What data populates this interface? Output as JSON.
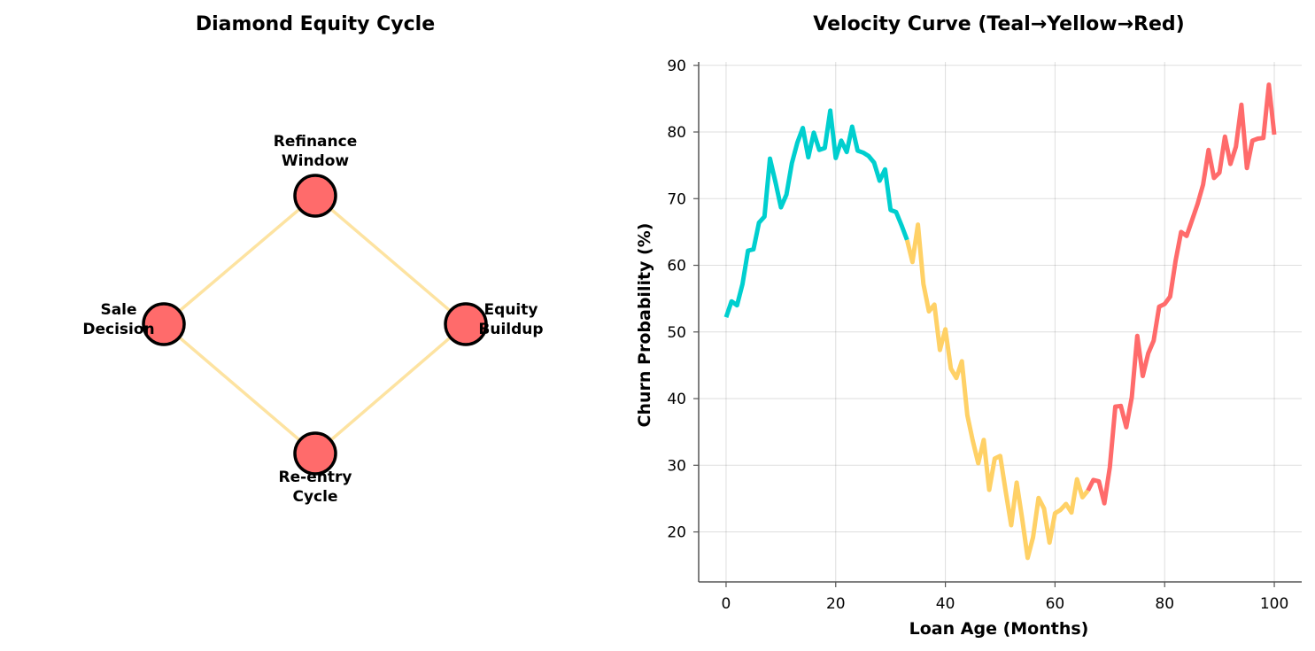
{
  "diagram": {
    "title": "Diamond Equity Cycle",
    "node_color": "#ff6b6b",
    "edge_color": "#fde3a1",
    "nodes": [
      {
        "id": "refinance",
        "label_lines": [
          "Refinance",
          "Window"
        ],
        "label_pos": "above"
      },
      {
        "id": "equity",
        "label_lines": [
          "Equity",
          "Buildup"
        ],
        "label_pos": "right"
      },
      {
        "id": "reentry",
        "label_lines": [
          "Re-entry",
          "Cycle"
        ],
        "label_pos": "below"
      },
      {
        "id": "sale",
        "label_lines": [
          "Sale",
          "Decision"
        ],
        "label_pos": "left"
      }
    ],
    "edges": [
      [
        "refinance",
        "equity"
      ],
      [
        "equity",
        "reentry"
      ],
      [
        "reentry",
        "sale"
      ],
      [
        "sale",
        "refinance"
      ]
    ]
  },
  "chart_data": {
    "type": "line",
    "title": "Velocity Curve (Teal→Yellow→Red)",
    "xlabel": "Loan Age (Months)",
    "ylabel": "Churn Probability (%)",
    "xlim": [
      -5,
      105
    ],
    "ylim": [
      12.5,
      90.5
    ],
    "xticks": [
      0,
      20,
      40,
      60,
      80,
      100
    ],
    "yticks": [
      20,
      30,
      40,
      50,
      60,
      70,
      80,
      90
    ],
    "grid": true,
    "segments": [
      {
        "color": "#00cfcf",
        "x_start": 0,
        "x_end": 33
      },
      {
        "color": "#ffd166",
        "x_start": 33,
        "x_end": 66
      },
      {
        "color": "#ff6b6b",
        "x_start": 66,
        "x_end": 100
      }
    ],
    "x": [
      0,
      1,
      2,
      3,
      4,
      5,
      6,
      7,
      8,
      9,
      10,
      11,
      12,
      13,
      14,
      15,
      16,
      17,
      18,
      19,
      20,
      21,
      22,
      23,
      24,
      25,
      26,
      27,
      28,
      29,
      30,
      31,
      32,
      33,
      34,
      35,
      36,
      37,
      38,
      39,
      40,
      41,
      42,
      43,
      44,
      45,
      46,
      47,
      48,
      49,
      50,
      51,
      52,
      53,
      54,
      55,
      56,
      57,
      58,
      59,
      60,
      61,
      62,
      63,
      64,
      65,
      66,
      67,
      68,
      69,
      70,
      71,
      72,
      73,
      74,
      75,
      76,
      77,
      78,
      79,
      80,
      81,
      82,
      83,
      84,
      85,
      86,
      87,
      88,
      89,
      90,
      91,
      92,
      93,
      94,
      95,
      96,
      97,
      98,
      99,
      100
    ],
    "y": [
      52.2,
      54.6,
      54.0,
      57.2,
      62.2,
      62.4,
      66.4,
      67.3,
      76.0,
      72.5,
      68.7,
      70.6,
      75.3,
      78.4,
      80.6,
      76.2,
      79.9,
      77.3,
      77.6,
      83.2,
      76.1,
      78.7,
      77.0,
      80.8,
      77.2,
      76.9,
      76.4,
      75.4,
      72.7,
      74.4,
      68.3,
      68.0,
      66.0,
      63.8,
      60.5,
      66.1,
      57.2,
      53.1,
      54.1,
      47.3,
      50.4,
      44.5,
      43.1,
      45.6,
      37.5,
      33.7,
      30.3,
      33.8,
      26.3,
      31.0,
      31.4,
      26.1,
      21.0,
      27.4,
      22.0,
      16.1,
      19.2,
      25.1,
      23.5,
      18.4,
      22.8,
      23.3,
      24.2,
      22.9,
      27.9,
      25.2,
      26.2,
      27.8,
      27.6,
      24.3,
      29.7,
      38.8,
      38.9,
      35.7,
      40.2,
      49.4,
      43.4,
      46.8,
      48.7,
      53.8,
      54.2,
      55.3,
      60.7,
      65.0,
      64.4,
      66.8,
      69.2,
      72.1,
      77.3,
      73.1,
      73.9,
      79.3,
      75.2,
      77.8,
      84.1,
      74.6,
      78.7,
      79.0,
      79.1,
      87.1,
      79.6
    ]
  }
}
